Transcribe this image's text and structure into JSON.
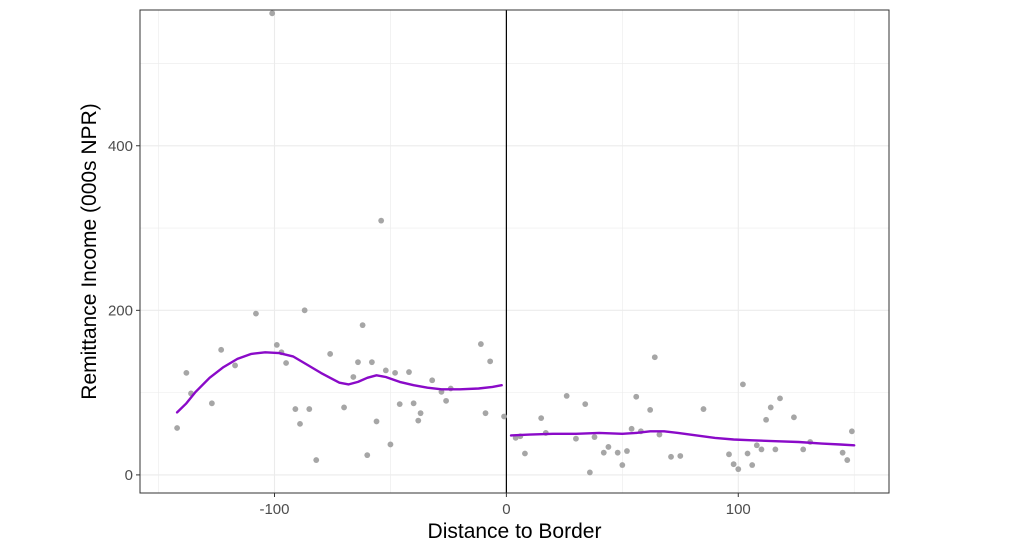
{
  "chart_data": {
    "type": "scatter",
    "xlabel": "Distance to Border",
    "ylabel": "Remittance Income (000s NPR)",
    "xlim": [
      -158,
      165
    ],
    "ylim": [
      -22,
      565
    ],
    "x_ticks": [
      -100,
      0,
      100
    ],
    "y_ticks": [
      0,
      200,
      400
    ],
    "x_tick_labels": [
      "-100",
      "0",
      "100"
    ],
    "y_tick_labels": [
      "0",
      "200",
      "400"
    ],
    "grid": true,
    "cutoff_x": 0,
    "colors": {
      "points": "#a6a6a6",
      "smooth": "#8a0ac8",
      "cutoff": "#000000",
      "grid": "#ebebeb",
      "panel_border": "#333333"
    },
    "points": [
      [
        -142,
        57
      ],
      [
        -138,
        124
      ],
      [
        -136,
        99
      ],
      [
        -127,
        87
      ],
      [
        -123,
        152
      ],
      [
        -117,
        133
      ],
      [
        -108,
        196
      ],
      [
        -101,
        561
      ],
      [
        -99,
        158
      ],
      [
        -97,
        149
      ],
      [
        -95,
        136
      ],
      [
        -91,
        80
      ],
      [
        -89,
        62
      ],
      [
        -87,
        200
      ],
      [
        -85,
        80
      ],
      [
        -82,
        18
      ],
      [
        -76,
        147
      ],
      [
        -70,
        82
      ],
      [
        -66,
        119
      ],
      [
        -64,
        137
      ],
      [
        -62,
        182
      ],
      [
        -60,
        24
      ],
      [
        -58,
        137
      ],
      [
        -56,
        65
      ],
      [
        -54,
        309
      ],
      [
        -52,
        127
      ],
      [
        -50,
        37
      ],
      [
        -48,
        124
      ],
      [
        -46,
        86
      ],
      [
        -42,
        125
      ],
      [
        -40,
        87
      ],
      [
        -38,
        66
      ],
      [
        -37,
        75
      ],
      [
        -32,
        115
      ],
      [
        -28,
        101
      ],
      [
        -26,
        90
      ],
      [
        -24,
        105
      ],
      [
        -11,
        159
      ],
      [
        -9,
        75
      ],
      [
        -7,
        138
      ],
      [
        -1,
        71
      ],
      [
        4,
        45
      ],
      [
        6,
        47
      ],
      [
        8,
        26
      ],
      [
        15,
        69
      ],
      [
        17,
        51
      ],
      [
        26,
        96
      ],
      [
        30,
        44
      ],
      [
        34,
        86
      ],
      [
        36,
        3
      ],
      [
        38,
        46
      ],
      [
        42,
        27
      ],
      [
        44,
        34
      ],
      [
        48,
        27
      ],
      [
        50,
        12
      ],
      [
        52,
        29
      ],
      [
        54,
        56
      ],
      [
        56,
        95
      ],
      [
        58,
        53
      ],
      [
        62,
        79
      ],
      [
        64,
        143
      ],
      [
        66,
        49
      ],
      [
        71,
        22
      ],
      [
        75,
        23
      ],
      [
        85,
        80
      ],
      [
        96,
        25
      ],
      [
        98,
        13
      ],
      [
        100,
        7
      ],
      [
        102,
        110
      ],
      [
        104,
        26
      ],
      [
        106,
        12
      ],
      [
        108,
        36
      ],
      [
        110,
        31
      ],
      [
        112,
        67
      ],
      [
        114,
        82
      ],
      [
        116,
        31
      ],
      [
        118,
        93
      ],
      [
        124,
        70
      ],
      [
        128,
        31
      ],
      [
        131,
        40
      ],
      [
        145,
        27
      ],
      [
        147,
        18
      ],
      [
        149,
        53
      ]
    ],
    "smooth_left": [
      [
        -142,
        76
      ],
      [
        -138,
        87
      ],
      [
        -134,
        101
      ],
      [
        -128,
        118
      ],
      [
        -122,
        131
      ],
      [
        -116,
        141
      ],
      [
        -110,
        147
      ],
      [
        -104,
        149
      ],
      [
        -98,
        148
      ],
      [
        -92,
        144
      ],
      [
        -86,
        134
      ],
      [
        -80,
        124
      ],
      [
        -76,
        118
      ],
      [
        -72,
        112
      ],
      [
        -68,
        110
      ],
      [
        -64,
        113
      ],
      [
        -60,
        118
      ],
      [
        -56,
        121
      ],
      [
        -52,
        119
      ],
      [
        -46,
        113
      ],
      [
        -40,
        109
      ],
      [
        -34,
        106
      ],
      [
        -28,
        104
      ],
      [
        -20,
        104
      ],
      [
        -12,
        105
      ],
      [
        -6,
        107
      ],
      [
        -2,
        109
      ]
    ],
    "smooth_right": [
      [
        2,
        48
      ],
      [
        10,
        49
      ],
      [
        20,
        50
      ],
      [
        30,
        50
      ],
      [
        40,
        51
      ],
      [
        50,
        50
      ],
      [
        56,
        51
      ],
      [
        62,
        53
      ],
      [
        68,
        53
      ],
      [
        74,
        51
      ],
      [
        82,
        48
      ],
      [
        90,
        45
      ],
      [
        98,
        43
      ],
      [
        106,
        42
      ],
      [
        116,
        41
      ],
      [
        126,
        40
      ],
      [
        136,
        38
      ],
      [
        144,
        37
      ],
      [
        150,
        36
      ]
    ]
  }
}
